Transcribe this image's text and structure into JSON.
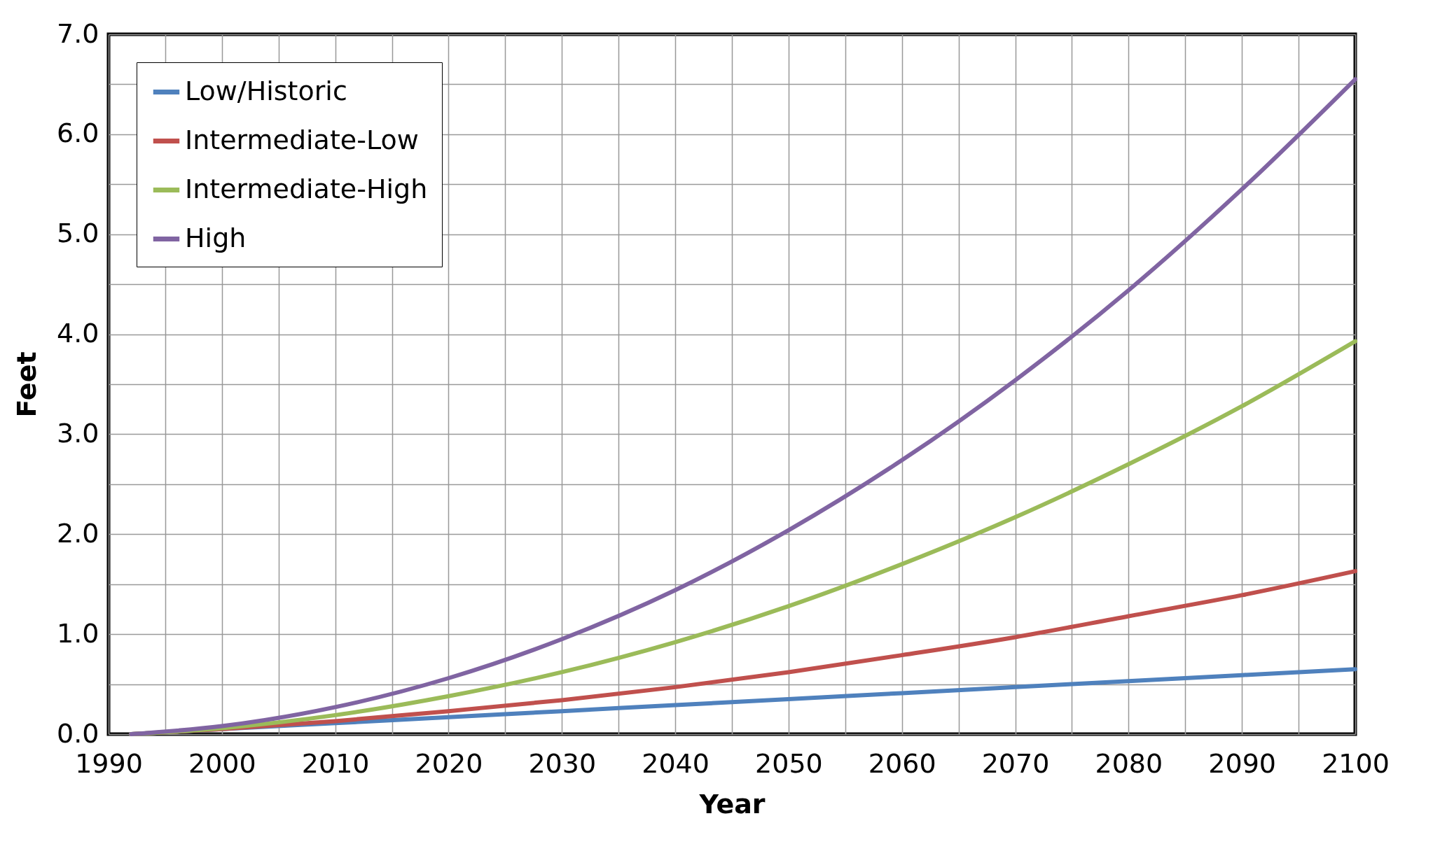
{
  "chart_data": {
    "type": "line",
    "xlabel": "Year",
    "ylabel": "Feet",
    "x": [
      1992,
      2000,
      2010,
      2020,
      2030,
      2040,
      2050,
      2060,
      2070,
      2080,
      2090,
      2100
    ],
    "series": [
      {
        "name": "Low/Historic",
        "color": "#4f81bd",
        "values": [
          0,
          0.05,
          0.11,
          0.17,
          0.23,
          0.29,
          0.35,
          0.41,
          0.47,
          0.53,
          0.59,
          0.65
        ]
      },
      {
        "name": "Intermediate-Low",
        "color": "#c0504d",
        "values": [
          0,
          0.05,
          0.13,
          0.23,
          0.34,
          0.47,
          0.62,
          0.79,
          0.97,
          1.18,
          1.39,
          1.63
        ]
      },
      {
        "name": "Intermediate-High",
        "color": "#9bbb59",
        "values": [
          0,
          0.06,
          0.19,
          0.38,
          0.62,
          0.92,
          1.28,
          1.7,
          2.17,
          2.7,
          3.28,
          3.93
        ]
      },
      {
        "name": "High",
        "color": "#8064a2",
        "values": [
          0,
          0.08,
          0.27,
          0.56,
          0.95,
          1.44,
          2.04,
          2.74,
          3.54,
          4.44,
          5.45,
          6.55
        ]
      }
    ],
    "xlim": [
      1990,
      2100
    ],
    "xticks": [
      1990,
      {
        "value": 1995,
        "label": null
      },
      2000,
      {
        "value": 2005,
        "label": null
      },
      2010,
      {
        "value": 2015,
        "label": null
      },
      2020,
      {
        "value": 2025,
        "label": null
      },
      2030,
      {
        "value": 2035,
        "label": null
      },
      2040,
      {
        "value": 2045,
        "label": null
      },
      2050,
      {
        "value": 2055,
        "label": null
      },
      2060,
      {
        "value": 2065,
        "label": null
      },
      2070,
      {
        "value": 2075,
        "label": null
      },
      2080,
      {
        "value": 2085,
        "label": null
      },
      2090,
      {
        "value": 2095,
        "label": null
      },
      2100
    ],
    "ylim": [
      0,
      7
    ],
    "yticks": [
      {
        "value": 0,
        "label": "0.0"
      },
      {
        "value": 0.5,
        "label": null
      },
      {
        "value": 1,
        "label": "1.0"
      },
      {
        "value": 1.5,
        "label": null
      },
      {
        "value": 2,
        "label": "2.0"
      },
      {
        "value": 2.5,
        "label": null
      },
      {
        "value": 3,
        "label": "3.0"
      },
      {
        "value": 3.5,
        "label": null
      },
      {
        "value": 4,
        "label": "4.0"
      },
      {
        "value": 4.5,
        "label": null
      },
      {
        "value": 5,
        "label": "5.0"
      },
      {
        "value": 5.5,
        "label": null
      },
      {
        "value": 6,
        "label": "6.0"
      },
      {
        "value": 6.5,
        "label": null
      },
      {
        "value": 7,
        "label": "7.0"
      }
    ],
    "grid": true,
    "legend": "top left"
  }
}
